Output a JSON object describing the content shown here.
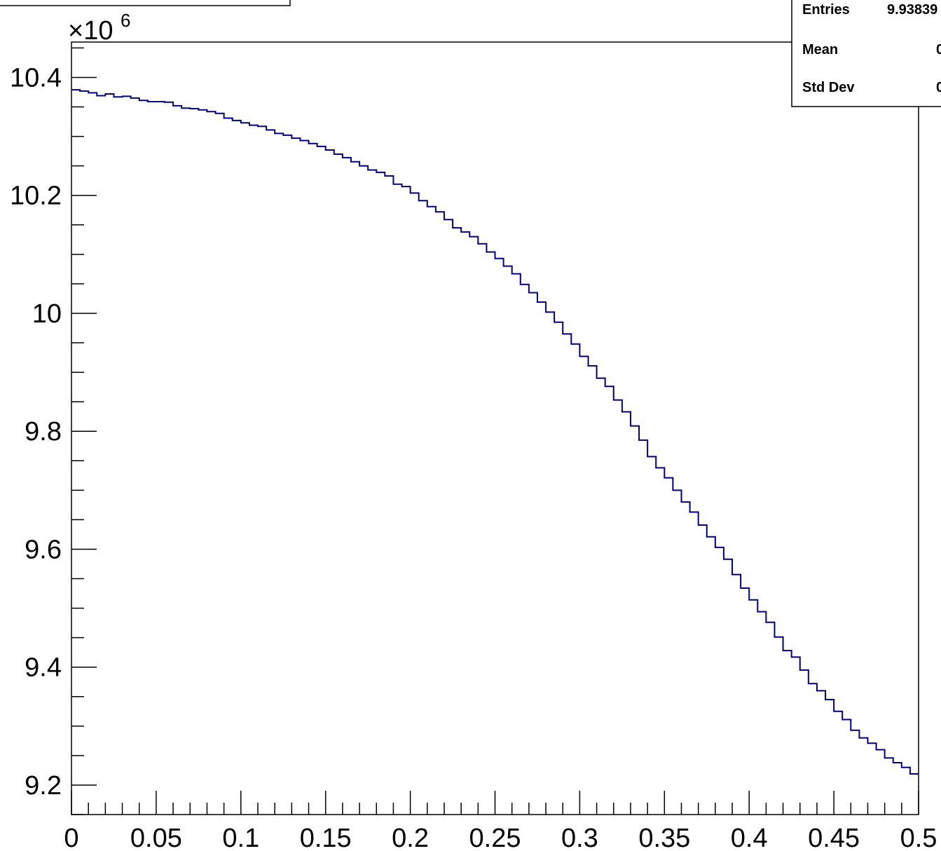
{
  "chart_data": {
    "type": "histogram",
    "title": "",
    "xlabel": "",
    "ylabel": "",
    "x_range": [
      0,
      0.5
    ],
    "y_range": [
      9.15,
      10.46
    ],
    "y_multiplier": "×10",
    "y_multiplier_exponent": "6",
    "x_ticks": [
      "0",
      "0.05",
      "0.1",
      "0.15",
      "0.2",
      "0.25",
      "0.3",
      "0.35",
      "0.4",
      "0.45",
      "0.5"
    ],
    "y_ticks": [
      "9.2",
      "9.4",
      "9.6",
      "9.8",
      "10",
      "10.2",
      "10.4"
    ],
    "line_color": "#000080",
    "bin_width": 0.005,
    "values": [
      10.386,
      10.385,
      10.383,
      10.383,
      10.38,
      10.376,
      10.379,
      10.377,
      10.374,
      10.369,
      10.372,
      10.367,
      10.368,
      10.365,
      10.361,
      10.359,
      10.359,
      10.358,
      10.352,
      10.348,
      10.347,
      10.345,
      10.342,
      10.339,
      10.331,
      10.327,
      10.323,
      10.319,
      10.317,
      10.311,
      10.305,
      10.302,
      10.297,
      10.293,
      10.288,
      10.283,
      10.277,
      10.27,
      10.264,
      10.257,
      10.25,
      10.243,
      10.239,
      10.233,
      10.219,
      10.215,
      10.204,
      10.191,
      10.181,
      10.172,
      10.159,
      10.145,
      10.138,
      10.13,
      10.118,
      10.104,
      10.093,
      10.08,
      10.067,
      10.049,
      10.035,
      10.019,
      10.002,
      9.985,
      9.965,
      9.948,
      9.927,
      9.911,
      9.89,
      9.876,
      9.853,
      9.833,
      9.809,
      9.785,
      9.757,
      9.738,
      9.721,
      9.7,
      9.68,
      9.663,
      9.641,
      9.621,
      9.603,
      9.583,
      9.557,
      9.534,
      9.514,
      9.494,
      9.476,
      9.451,
      9.428,
      9.417,
      9.395,
      9.372,
      9.36,
      9.345,
      9.325,
      9.311,
      9.293,
      9.28,
      9.271,
      9.26,
      9.246,
      9.238,
      9.23,
      9.219,
      9.219,
      9.216,
      9.212,
      9.206,
      9.201,
      9.204
    ],
    "stats": [
      {
        "label": "Entries",
        "value": "9.93839"
      },
      {
        "label": "Mean",
        "value": "0"
      },
      {
        "label": "Std Dev",
        "value": "0"
      }
    ]
  }
}
